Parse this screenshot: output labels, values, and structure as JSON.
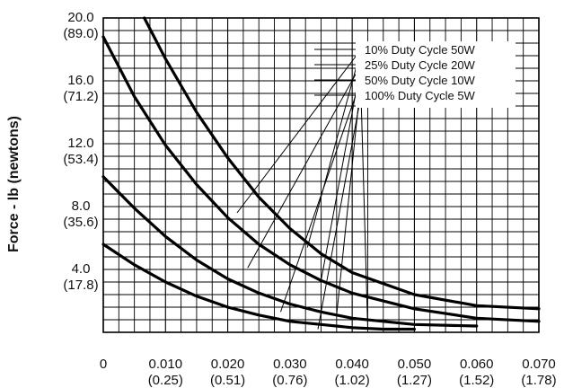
{
  "chart_data": {
    "type": "line",
    "title": "",
    "ylabel": "Force - lb (newtons)",
    "xlabel": "",
    "xlim": [
      0,
      0.07
    ],
    "ylim": [
      0,
      20.0
    ],
    "grid": true,
    "x_ticks": [
      {
        "value": 0,
        "label": "0",
        "sub": ""
      },
      {
        "value": 0.01,
        "label": "0.010",
        "sub": "(0.25)"
      },
      {
        "value": 0.02,
        "label": "0.020",
        "sub": "(0.51)"
      },
      {
        "value": 0.03,
        "label": "0.030",
        "sub": "(0.76)"
      },
      {
        "value": 0.04,
        "label": "0.040",
        "sub": "(1.02)"
      },
      {
        "value": 0.05,
        "label": "0.050",
        "sub": "(1.27)"
      },
      {
        "value": 0.06,
        "label": "0.060",
        "sub": "(1.52)"
      },
      {
        "value": 0.07,
        "label": "0.070",
        "sub": "(1.78)"
      }
    ],
    "y_ticks": [
      {
        "value": 4.0,
        "label": "4.0",
        "sub": "(17.8)"
      },
      {
        "value": 8.0,
        "label": "8.0",
        "sub": "(35.6)"
      },
      {
        "value": 12.0,
        "label": "12.0",
        "sub": "(53.4)"
      },
      {
        "value": 16.0,
        "label": "16.0",
        "sub": "(71.2)"
      },
      {
        "value": 20.0,
        "label": "20.0",
        "sub": "(89.0)"
      }
    ],
    "legend_position": "top-right",
    "series": [
      {
        "name": "10% Duty Cycle 50W",
        "x": [
          0.0066,
          0.01,
          0.015,
          0.02,
          0.025,
          0.03,
          0.035,
          0.04,
          0.05,
          0.06,
          0.07
        ],
        "y": [
          20.0,
          17.4,
          14.0,
          11.1,
          8.6,
          6.6,
          5.0,
          3.8,
          2.4,
          1.7,
          1.5
        ]
      },
      {
        "name": "25% Duty Cycle 20W",
        "x": [
          0,
          0.005,
          0.01,
          0.015,
          0.02,
          0.025,
          0.03,
          0.035,
          0.04,
          0.05,
          0.06,
          0.07
        ],
        "y": [
          18.8,
          15.0,
          11.9,
          9.4,
          7.3,
          5.6,
          4.3,
          3.3,
          2.5,
          1.5,
          0.9,
          0.7
        ]
      },
      {
        "name": "50% Duty Cycle 10W",
        "x": [
          0,
          0.005,
          0.01,
          0.015,
          0.02,
          0.025,
          0.03,
          0.035,
          0.04,
          0.05,
          0.06
        ],
        "y": [
          9.9,
          7.9,
          6.1,
          4.6,
          3.4,
          2.5,
          1.8,
          1.3,
          0.9,
          0.5,
          0.4
        ]
      },
      {
        "name": "100% Duty Cycle 5W",
        "x": [
          0,
          0.005,
          0.01,
          0.015,
          0.02,
          0.025,
          0.03,
          0.035,
          0.04,
          0.045,
          0.05
        ],
        "y": [
          5.6,
          4.3,
          3.2,
          2.3,
          1.6,
          1.1,
          0.7,
          0.5,
          0.3,
          0.2,
          0.2
        ]
      }
    ],
    "legend_leaders": [
      {
        "series": "10% Duty Cycle 50W",
        "to": [
          0.0215,
          7.6
        ]
      },
      {
        "series": "25% Duty Cycle 20W",
        "to": [
          0.0232,
          4.1
        ]
      },
      {
        "series": "50% Duty Cycle 10W",
        "to": [
          0.0285,
          1.3
        ]
      },
      {
        "series": "100% Duty Cycle 5W",
        "to": [
          0.0345,
          0.2
        ]
      }
    ],
    "leaders_extra": [
      {
        "series": "10% Duty Cycle 50W",
        "to": [
          0.0328,
          5.4
        ]
      },
      {
        "series": "25% Duty Cycle 20W",
        "to": [
          0.035,
          3.3
        ]
      },
      {
        "series": "50% Duty Cycle 10W",
        "to": [
          0.0375,
          1.1
        ]
      },
      {
        "series": "100% Duty Cycle 5W",
        "to": [
          0.0425,
          0.25
        ]
      }
    ]
  }
}
